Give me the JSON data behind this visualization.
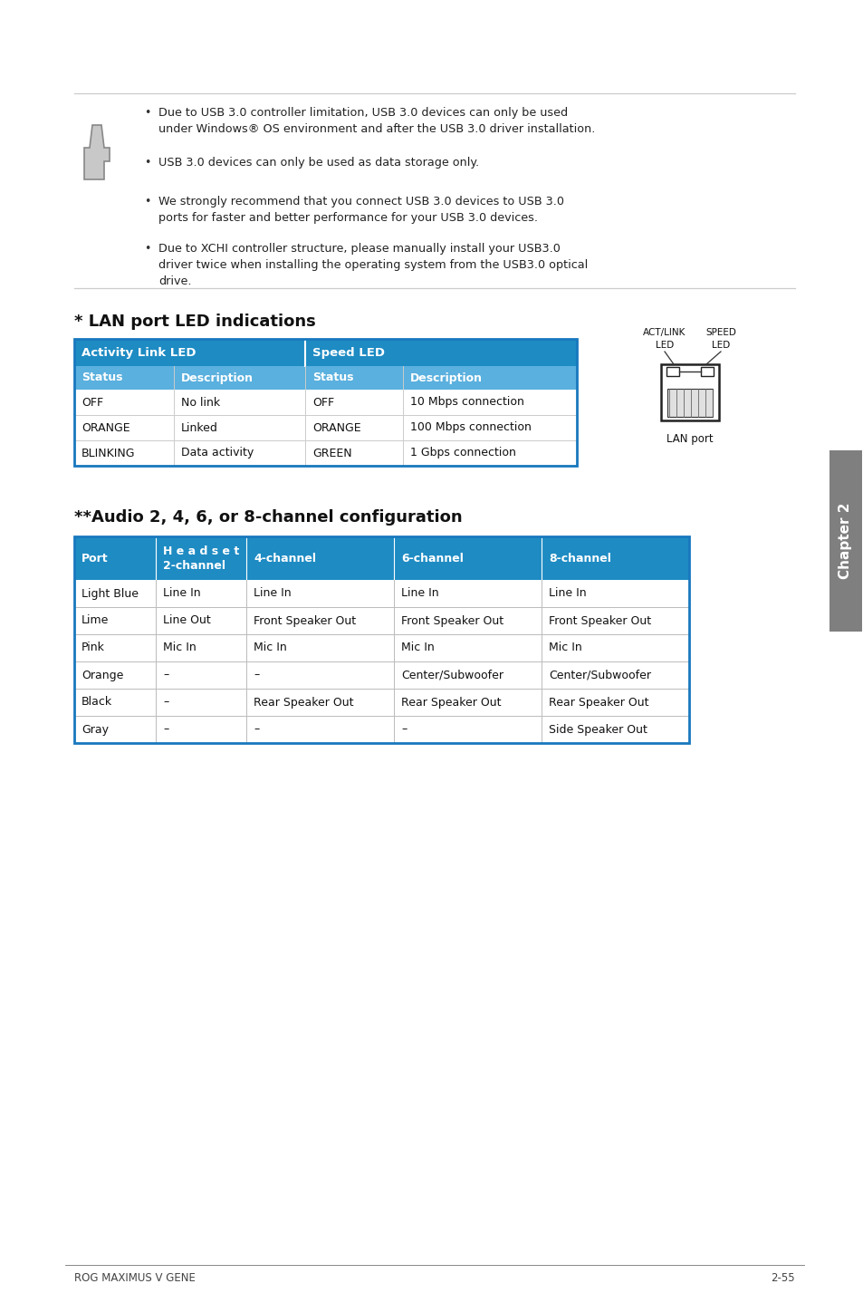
{
  "page_bg": "#ffffff",
  "line_color": "#cccccc",
  "note_bullets": [
    "Due to USB 3.0 controller limitation, USB 3.0 devices can only be used\nunder Windows® OS environment and after the USB 3.0 driver installation.",
    "USB 3.0 devices can only be used as data storage only.",
    "We strongly recommend that you connect USB 3.0 devices to USB 3.0\nports for faster and better performance for your USB 3.0 devices.",
    "Due to XCHI controller structure, please manually install your USB3.0\ndriver twice when installing the operating system from the USB3.0 optical\ndrive."
  ],
  "lan_title": "* LAN port LED indications",
  "lan_header1": "Activity Link LED",
  "lan_header2": "Speed LED",
  "lan_sub_headers": [
    "Status",
    "Description",
    "Status",
    "Description"
  ],
  "lan_rows": [
    [
      "OFF",
      "No link",
      "OFF",
      "10 Mbps connection"
    ],
    [
      "ORANGE",
      "Linked",
      "ORANGE",
      "100 Mbps connection"
    ],
    [
      "BLINKING",
      "Data activity",
      "GREEN",
      "1 Gbps connection"
    ]
  ],
  "audio_title": "**Audio 2, 4, 6, or 8-channel configuration",
  "audio_headers": [
    "Port",
    "H e a d s e t\n2-channel",
    "4-channel",
    "6-channel",
    "8-channel"
  ],
  "audio_rows": [
    [
      "Light Blue",
      "Line In",
      "Line In",
      "Line In",
      "Line In"
    ],
    [
      "Lime",
      "Line Out",
      "Front Speaker Out",
      "Front Speaker Out",
      "Front Speaker Out"
    ],
    [
      "Pink",
      "Mic In",
      "Mic In",
      "Mic In",
      "Mic In"
    ],
    [
      "Orange",
      "–",
      "–",
      "Center/Subwoofer",
      "Center/Subwoofer"
    ],
    [
      "Black",
      "–",
      "Rear Speaker Out",
      "Rear Speaker Out",
      "Rear Speaker Out"
    ],
    [
      "Gray",
      "–",
      "–",
      "–",
      "Side Speaker Out"
    ]
  ],
  "table_hdr_bg": "#1e8bc3",
  "table_hdr_fg": "#ffffff",
  "table_sub_bg": "#5ab0de",
  "table_sub_fg": "#ffffff",
  "table_border": "#1878be",
  "chapter_label": "Chapter 2",
  "chapter_bg": "#7f7f7f",
  "footer_left": "ROG MAXIMUS V GENE",
  "footer_right": "2-55"
}
